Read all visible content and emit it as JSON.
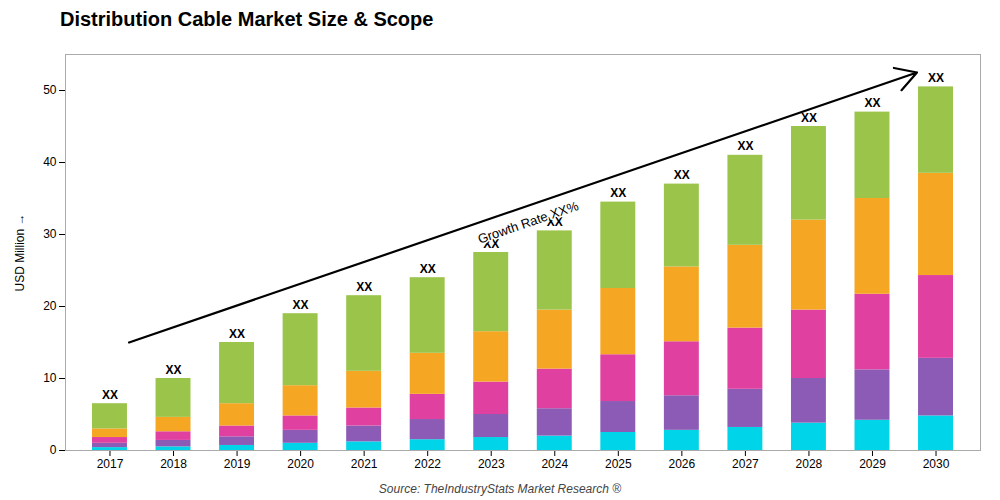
{
  "chart_data": {
    "type": "bar",
    "stacked": true,
    "title": "Distribution Cable Market Size & Scope",
    "ylabel": "USD Million",
    "caption": "Source: TheIndustryStats Market Research ®",
    "x": [
      2017,
      2018,
      2019,
      2020,
      2021,
      2022,
      2023,
      2024,
      2025,
      2026,
      2027,
      2028,
      2029,
      2030
    ],
    "series": [
      {
        "color": "#00d4e8",
        "values": [
          0.4,
          0.5,
          0.7,
          1.0,
          1.2,
          1.5,
          1.8,
          2.0,
          2.5,
          2.8,
          3.2,
          3.8,
          4.2,
          4.8
        ]
      },
      {
        "color": "#8b5bb5",
        "values": [
          0.6,
          0.9,
          1.2,
          1.8,
          2.2,
          2.8,
          3.2,
          3.8,
          4.3,
          4.8,
          5.3,
          6.2,
          7.0,
          8.0
        ]
      },
      {
        "color": "#e040a0",
        "values": [
          0.8,
          1.2,
          1.5,
          2.0,
          2.5,
          3.5,
          4.5,
          5.5,
          6.5,
          7.5,
          8.5,
          9.5,
          10.5,
          11.5
        ]
      },
      {
        "color": "#f5a623",
        "values": [
          1.2,
          2.0,
          3.1,
          4.2,
          5.1,
          5.7,
          7.0,
          8.2,
          9.2,
          10.4,
          11.5,
          12.5,
          13.3,
          14.2
        ]
      },
      {
        "color": "#9bc44a",
        "values": [
          3.5,
          5.4,
          8.5,
          10.0,
          10.5,
          10.5,
          11.0,
          11.0,
          12.0,
          11.5,
          12.5,
          13.0,
          12.0,
          12.0
        ]
      }
    ],
    "totals": [
      6.5,
      10.0,
      15.0,
      19.0,
      21.5,
      24.0,
      27.5,
      30.5,
      34.5,
      37.0,
      41.0,
      45.0,
      47.0,
      50.5
    ],
    "total_labels": [
      "XX",
      "XX",
      "XX",
      "XX",
      "XX",
      "XX",
      "XX",
      "XX",
      "XX",
      "XX",
      "XX",
      "XX",
      "XX",
      "XX"
    ],
    "annotations": [
      {
        "text": "Growth Rate XX%",
        "x1": 2017.3,
        "y1": 15.0,
        "x2": 2029.7,
        "y2": 52.5
      }
    ],
    "xlim": [
      2016.3,
      2030.7
    ],
    "xticks": [
      2017,
      2018,
      2019,
      2020,
      2021,
      2022,
      2023,
      2024,
      2025,
      2026,
      2027,
      2028,
      2029,
      2030
    ],
    "ylim": [
      0,
      55
    ],
    "yticks": [
      0,
      10,
      20,
      30,
      40,
      50
    ],
    "grid": false
  }
}
